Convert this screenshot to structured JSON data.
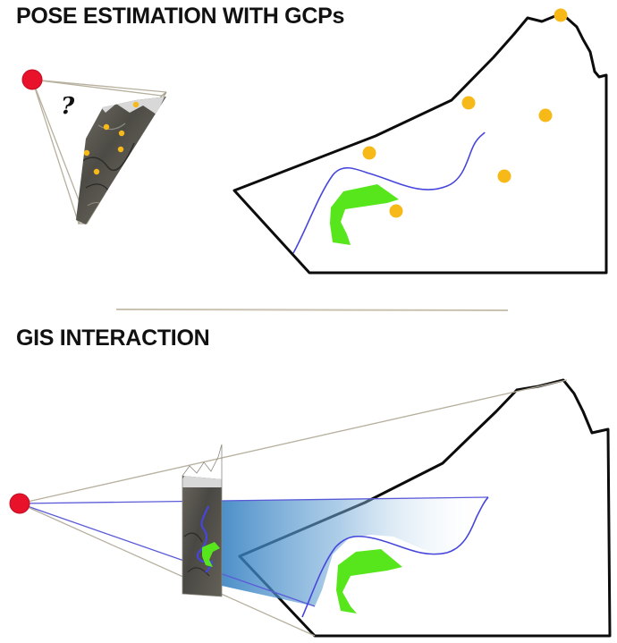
{
  "headings": {
    "pose_estimation": "POSE ESTIMATION WITH GCPs",
    "gis_interaction": "GIS INTERACTION"
  },
  "labels": {
    "unknown_pose_mark": "?"
  },
  "colors": {
    "camera_point": "#e8122b",
    "gcp_marker": "#f7b918",
    "terrain_outline": "#0c0c0c",
    "river_line": "#4646dc",
    "region_polygon": "#57e61c",
    "view_ray": "#b7b09e",
    "projection_ray": "#5a5ad8",
    "projection_fill": "#2c7bbf",
    "section_divider": "#c9c2b0",
    "photo_sky": "#d6d6d6",
    "photo_rock": "#55534d"
  },
  "icons": {
    "camera": "red-circle",
    "gcp": "yellow-dot",
    "photo": "rock-photo-thumbnail"
  }
}
